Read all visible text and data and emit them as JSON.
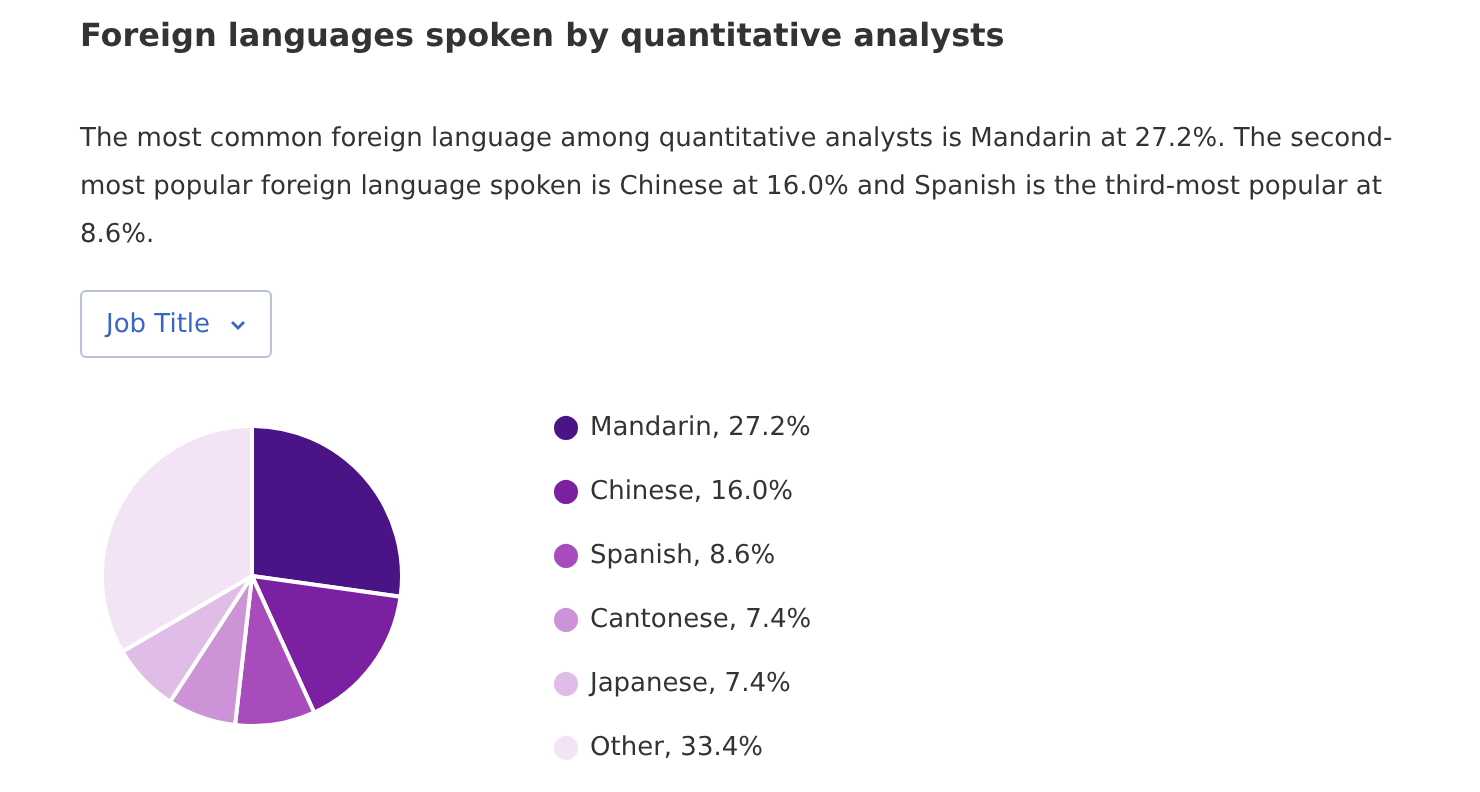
{
  "chart_data": {
    "type": "pie",
    "title": "Foreign languages spoken by quantitative analysts",
    "subtitle": "The most common foreign language among quantitative analysts is Mandarin at 27.2%. The second-most popular foreign language spoken is Chinese at 16.0% and Spanish is the third-most popular at 8.6%.",
    "annotations": [
      "Job Title"
    ],
    "categories": [
      "Mandarin, 27.2%",
      "Chinese, 16.0%",
      "Spanish, 8.6%",
      "Cantonese, 7.4%",
      "Japanese, 7.4%",
      "Other, 33.4%"
    ],
    "values": [
      27.2,
      16.0,
      8.6,
      7.4,
      7.4,
      33.4
    ],
    "colors": [
      "#4a1486",
      "#7b20a0",
      "#a84cbb",
      "#cc93d6",
      "#e0bde6",
      "#f2e4f4"
    ],
    "legend": "right"
  }
}
